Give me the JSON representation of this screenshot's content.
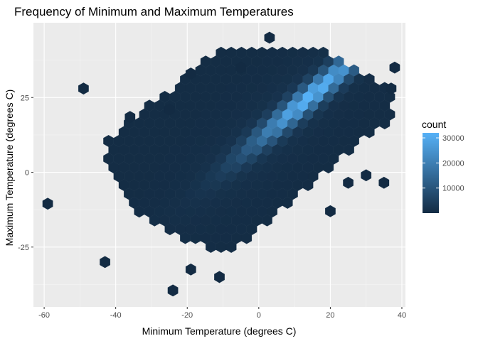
{
  "chart_data": {
    "type": "hexbin",
    "title": "Frequency of Minimum and Maximum Temperatures",
    "xlabel": "Minimum Temperature (degrees C)",
    "ylabel": "Maximum Temperature (degrees C)",
    "xlim": [
      -63,
      41
    ],
    "ylim": [
      -45,
      50
    ],
    "x_ticks": [
      -60,
      -40,
      -20,
      0,
      20,
      40
    ],
    "y_ticks": [
      -25,
      0,
      25
    ],
    "x_tick_labels": [
      "-60",
      "-40",
      "-20",
      "0",
      "20",
      "40"
    ],
    "y_tick_labels": [
      "-25",
      "0",
      "25"
    ],
    "grid": true,
    "panel_background": "#ebebeb",
    "legend": {
      "title": "count",
      "position": "right",
      "breaks": [
        10000,
        20000,
        30000
      ],
      "labels": [
        "10000",
        "20000",
        "30000"
      ],
      "range": [
        1,
        32000
      ],
      "low_color": "#132b43",
      "high_color": "#56b1f7"
    },
    "outliers": [
      {
        "x": -59,
        "y": -10.5,
        "count": 1
      },
      {
        "x": -49,
        "y": 28,
        "count": 1
      },
      {
        "x": -43,
        "y": -30,
        "count": 1
      },
      {
        "x": -36,
        "y": 18.5,
        "count": 1
      },
      {
        "x": -25,
        "y": 21,
        "count": 1
      },
      {
        "x": -24,
        "y": -39.5,
        "count": 1
      },
      {
        "x": -19,
        "y": 33,
        "count": 1
      },
      {
        "x": -19,
        "y": -32.5,
        "count": 1
      },
      {
        "x": -11,
        "y": -35,
        "count": 1
      },
      {
        "x": -5,
        "y": 35,
        "count": 2
      },
      {
        "x": 3,
        "y": 45,
        "count": 1
      },
      {
        "x": 20,
        "y": -13,
        "count": 1
      },
      {
        "x": 25,
        "y": -3.5,
        "count": 1
      },
      {
        "x": 30,
        "y": -1,
        "count": 1
      },
      {
        "x": 35,
        "y": -3.5,
        "count": 1
      },
      {
        "x": 37,
        "y": 28,
        "count": 1
      },
      {
        "x": 38,
        "y": 35,
        "count": 1
      }
    ],
    "density_model": {
      "description": "bivariate ridge along Tmax ≈ Tmin + 11",
      "peak": {
        "x": 15,
        "y": 27,
        "count": 31000
      },
      "ridge_slope": 1.0,
      "ridge_intercept": 11
    }
  }
}
